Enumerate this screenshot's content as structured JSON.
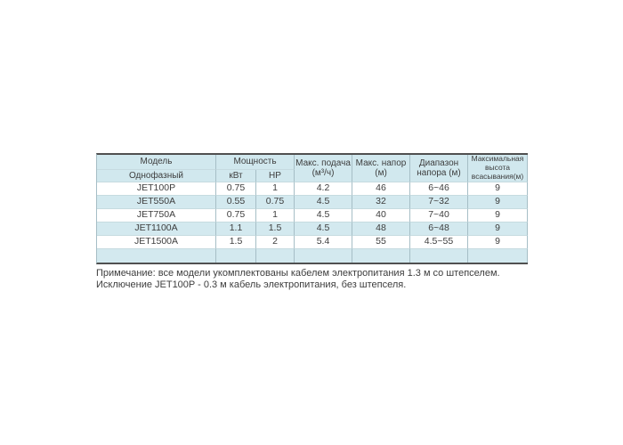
{
  "table": {
    "header": {
      "model": "Модель",
      "phase": "Однофазный",
      "power": "Мощность",
      "kw": "кВт",
      "hp": "HP",
      "max_flow": "Макс. подача (м³/ч)",
      "max_head": "Макс. напор (м)",
      "head_range": "Диапазон напора (м)",
      "max_suction": "Максимальная высота всасывания(м)"
    },
    "rows": [
      {
        "model": "JET100P",
        "kw": "0.75",
        "hp": "1",
        "flow": "4.2",
        "head": "46",
        "range": "6~46",
        "suction": "9"
      },
      {
        "model": "JET550A",
        "kw": "0.55",
        "hp": "0.75",
        "flow": "4.5",
        "head": "32",
        "range": "7~32",
        "suction": "9"
      },
      {
        "model": "JET750A",
        "kw": "0.75",
        "hp": "1",
        "flow": "4.5",
        "head": "40",
        "range": "7~40",
        "suction": "9"
      },
      {
        "model": "JET1100A",
        "kw": "1.1",
        "hp": "1.5",
        "flow": "4.5",
        "head": "48",
        "range": "6~48",
        "suction": "9"
      },
      {
        "model": "JET1500A",
        "kw": "1.5",
        "hp": "2",
        "flow": "5.4",
        "head": "55",
        "range": "4.5~55",
        "suction": "9"
      }
    ],
    "has_empty_spacer_row": true
  },
  "notes": {
    "line1": "Примечание: все модели укомплектованы кабелем электропитания 1.3 м со штепселем.",
    "line2": "Исключение JET100P - 0.3 м кабель электропитания, без штепселя."
  },
  "colors": {
    "header_bg": "#d1e8ee",
    "row_alt_bg": "#d3e9ef",
    "border_heavy": "#505050",
    "border_v": "#a6bec6",
    "border_h": "#c6dbe0",
    "text_color": "#3d3d3d",
    "page_bg": "#ffffff"
  }
}
